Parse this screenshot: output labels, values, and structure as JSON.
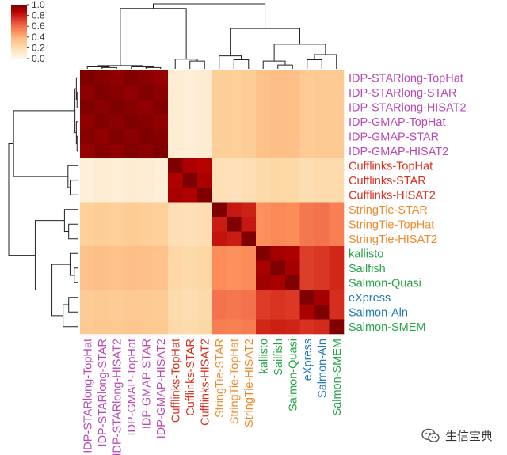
{
  "chart_data": {
    "type": "heatmap",
    "title": "",
    "labels": [
      "IDP-STARlong-TopHat",
      "IDP-STARlong-STAR",
      "IDP-STARlong-HISAT2",
      "IDP-GMAP-TopHat",
      "IDP-GMAP-STAR",
      "IDP-GMAP-HISAT2",
      "Cufflinks-TopHat",
      "Cufflinks-STAR",
      "Cufflinks-HISAT2",
      "StringTie-STAR",
      "StringTie-TopHat",
      "StringTie-HISAT2",
      "kallisto",
      "Sailfish",
      "Salmon-Quasi",
      "eXpress",
      "Salmon-Aln",
      "Salmon-SMEM"
    ],
    "column_labels": [
      "IDP-STARlong-TopHat",
      "IDP-STARlong-STAR",
      "IDP-STARlong-HISAT2",
      "IDP-GMAP-TopHat",
      "IDP-GMAP-STAR",
      "IDP-GMAP-HISAT2",
      "Cufflinks-TopHat",
      "Cufflinks-STAR",
      "Cufflinks-HISAT2",
      "StringTie-STAR",
      "StringTie-TopHat",
      "StringTie-HISAT2",
      "kallisto",
      "Sailfish",
      "Salmon-Quasi",
      "eXpress",
      "Salmon-Aln",
      "Salmon-SMEM"
    ],
    "label_colors": [
      "#b64bb2",
      "#b64bb2",
      "#b64bb2",
      "#b64bb2",
      "#b64bb2",
      "#b64bb2",
      "#d7301f",
      "#d7301f",
      "#d7301f",
      "#ef8a2c",
      "#ef8a2c",
      "#ef8a2c",
      "#27a348",
      "#27a348",
      "#27a348",
      "#2178b4",
      "#2178b4",
      "#27a348"
    ],
    "row_groups": [
      0,
      0,
      0,
      0,
      0,
      0,
      1,
      1,
      1,
      2,
      2,
      2,
      3,
      3,
      3,
      4,
      4,
      5
    ],
    "group_similarity": [
      [
        0.97,
        0.08,
        0.28,
        0.35,
        0.3,
        0.31
      ],
      [
        0.08,
        0.88,
        0.18,
        0.22,
        0.2,
        0.21
      ],
      [
        0.28,
        0.18,
        0.8,
        0.5,
        0.58,
        0.55
      ],
      [
        0.35,
        0.22,
        0.5,
        0.9,
        0.73,
        0.78
      ],
      [
        0.3,
        0.2,
        0.58,
        0.73,
        0.9,
        0.76
      ],
      [
        0.31,
        0.21,
        0.55,
        0.78,
        0.76,
        0.97
      ]
    ],
    "colorbar": {
      "min": 0.0,
      "max": 1.0,
      "ticks": [
        "1.0",
        "0.8",
        "0.6",
        "0.4",
        "0.2",
        "0.0"
      ],
      "colors": [
        "#fff7ec",
        "#fee8c8",
        "#fdd49e",
        "#fdbb84",
        "#fc8d59",
        "#ef6548",
        "#d7301f",
        "#b30000",
        "#7f0000"
      ]
    },
    "legend_position": "top-left"
  },
  "watermark": {
    "text": "生信宝典",
    "icon": "wechat-logo-icon"
  }
}
